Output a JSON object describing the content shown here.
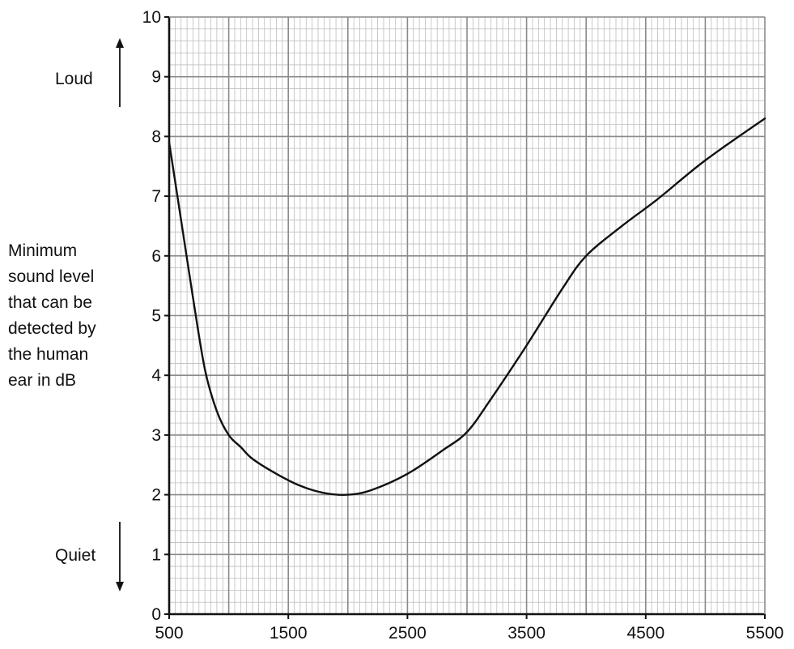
{
  "chart_data": {
    "type": "line",
    "title": "",
    "xlabel": "",
    "ylabel": "Minimum sound level that can be detected by the human ear in dB",
    "ylabel_lines": [
      "Minimum",
      "sound level",
      "that can be",
      "detected by",
      "the human",
      "ear in dB"
    ],
    "xlim": [
      500,
      5500
    ],
    "ylim": [
      0,
      10
    ],
    "x_tick_labels": [
      "500",
      "1500",
      "2500",
      "3500",
      "4500",
      "5500"
    ],
    "y_tick_labels": [
      "0",
      "1",
      "2",
      "3",
      "4",
      "5",
      "6",
      "7",
      "8",
      "9",
      "10"
    ],
    "annotations": {
      "loud": "Loud",
      "quiet": "Quiet"
    },
    "grid": true,
    "series": [
      {
        "x": [
          500,
          600,
          700,
          800,
          900,
          1000,
          1100,
          1200,
          1400,
          1600,
          1800,
          2000,
          2200,
          2500,
          2800,
          3000,
          3200,
          3500,
          3800,
          4000,
          4300,
          4600,
          5000,
          5500
        ],
        "y": [
          7.9,
          6.6,
          5.3,
          4.1,
          3.4,
          3.0,
          2.8,
          2.6,
          2.35,
          2.15,
          2.03,
          2.0,
          2.08,
          2.35,
          2.75,
          3.05,
          3.6,
          4.5,
          5.45,
          6.0,
          6.5,
          6.95,
          7.6,
          8.3
        ]
      }
    ]
  }
}
